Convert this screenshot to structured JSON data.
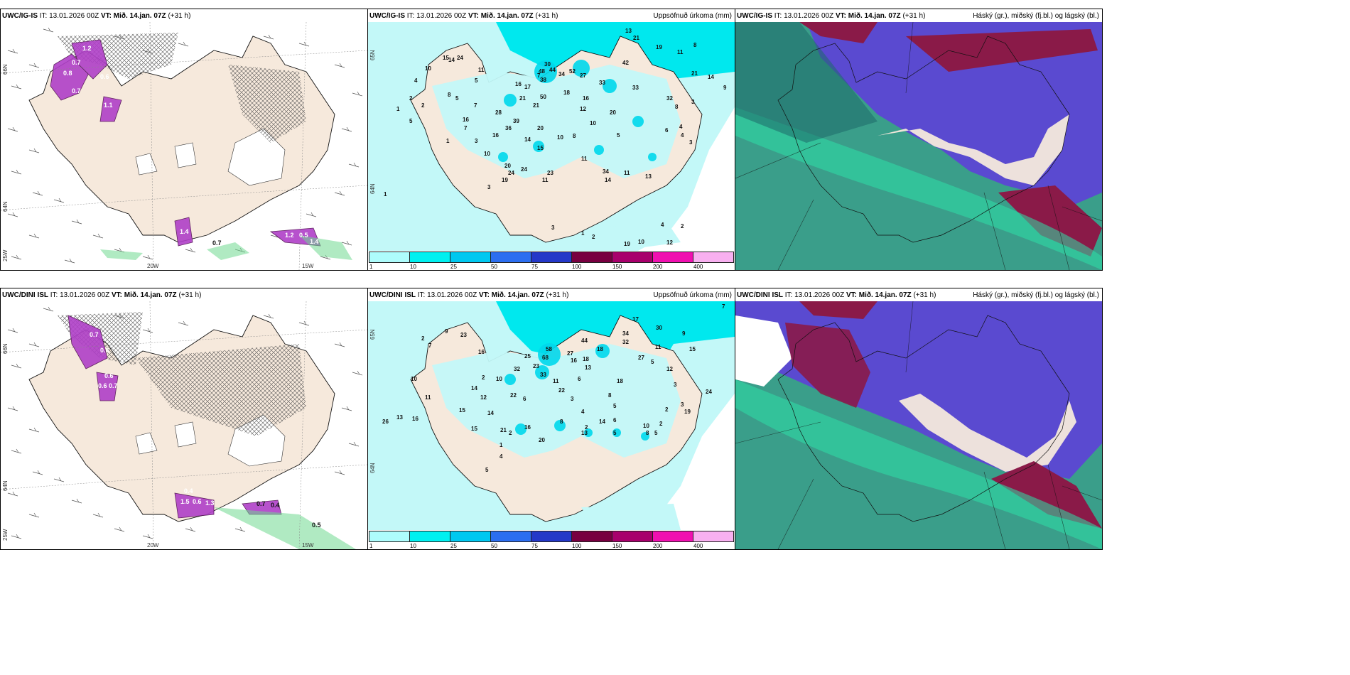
{
  "rows": [
    {
      "model": "UWC/IG-IS",
      "it_label": "IT:",
      "it_value": "13.01.2026 00Z",
      "vt_label": "VT:",
      "vt_value": "Mið. 14.jan. 07Z",
      "lead": "(+31 h)",
      "panel_left": {
        "lat_labels": [
          "66N",
          "64N",
          "25W"
        ],
        "lon_labels": [
          "20W",
          "15W"
        ],
        "precip_labels": [
          "1.2",
          "0.8",
          "0.7",
          "0.6",
          "0.7",
          "1.1",
          "1.4",
          "0.7",
          "1.2",
          "0.5",
          "1.4"
        ],
        "green_labels": []
      },
      "panel_mid": {
        "title": "Uppsöfnuð úrkoma (mm)",
        "lat_labels": [
          "65N",
          "64N"
        ],
        "values": [
          "13",
          "21",
          "8",
          "19",
          "11",
          "15",
          "14",
          "24",
          "42",
          "30",
          "10",
          "11",
          "21",
          "14",
          "9",
          "4",
          "5",
          "16",
          "17",
          "7",
          "38",
          "48",
          "44",
          "34",
          "52",
          "27",
          "33",
          "3",
          "2",
          "8",
          "5",
          "21",
          "50",
          "18",
          "16",
          "33",
          "32",
          "8",
          "7",
          "28",
          "21",
          "12",
          "20",
          "1",
          "2",
          "39",
          "36",
          "20",
          "10",
          "6",
          "4",
          "5",
          "16",
          "7",
          "10",
          "16",
          "14",
          "8",
          "5",
          "4",
          "3",
          "11",
          "15",
          "1",
          "3",
          "10",
          "20",
          "24",
          "23",
          "24",
          "19",
          "11",
          "13",
          "11",
          "34",
          "14",
          "3",
          "1",
          "4",
          "3",
          "1",
          "2",
          "2",
          "19",
          "10",
          "12"
        ]
      },
      "panel_right": {
        "title": "Háský (gr.), miðský (fj.bl.) og lágský (bl.)"
      }
    },
    {
      "model": "UWC/DINI ISL",
      "it_label": "IT:",
      "it_value": "13.01.2026 00Z",
      "vt_label": "VT:",
      "vt_value": "Mið. 14.jan. 07Z",
      "lead": "(+31 h)",
      "panel_left": {
        "lat_labels": [
          "66N",
          "64N",
          "25W"
        ],
        "lon_labels": [
          "20W",
          "15W"
        ],
        "precip_labels": [
          "0.7",
          "0.6",
          "0.6",
          "0.6",
          "0.7",
          "0.4",
          "1.5",
          "0.6",
          "1.3",
          "0.4",
          "0.7",
          "0.4"
        ],
        "green_labels": [
          "0.5"
        ]
      },
      "panel_mid": {
        "title": "Uppsöfnuð úrkoma (mm)",
        "lat_labels": [
          "65N",
          "64N"
        ],
        "values": [
          "7",
          "17",
          "30",
          "9",
          "15",
          "11",
          "2",
          "9",
          "7",
          "23",
          "16",
          "34",
          "32",
          "27",
          "5",
          "18",
          "44",
          "58",
          "27",
          "16",
          "18",
          "25",
          "68",
          "13",
          "32",
          "23",
          "33",
          "12",
          "10",
          "11",
          "6",
          "22",
          "18",
          "3",
          "2",
          "3",
          "10",
          "11",
          "14",
          "12",
          "22",
          "6",
          "8",
          "4",
          "5",
          "6",
          "2",
          "3",
          "19",
          "24",
          "26",
          "13",
          "16",
          "15",
          "15",
          "14",
          "21",
          "16",
          "2",
          "8",
          "14",
          "13",
          "5",
          "8",
          "5",
          "10",
          "2",
          "2",
          "20",
          "1",
          "4",
          "5"
        ]
      }
    }
  ],
  "colorbar": {
    "ticks": [
      "1",
      "10",
      "25",
      "50",
      "75",
      "100",
      "150",
      "200",
      "400"
    ],
    "colors": [
      "#aefcfc",
      "#00f0f0",
      "#00c8f0",
      "#2c6ef0",
      "#2438c8",
      "#780040",
      "#a8006c",
      "#f010b0",
      "#f8b0f0"
    ]
  },
  "colors": {
    "land": "#f6e9dc",
    "precip_cyan_light": "#c3f8f8",
    "precip_cyan": "#00e8ee",
    "cloud_high": "#3a9e8a",
    "cloud_mid": "#5a4ad0",
    "cloud_low": "#8a1a48",
    "high_band": "#2ee0a8"
  }
}
